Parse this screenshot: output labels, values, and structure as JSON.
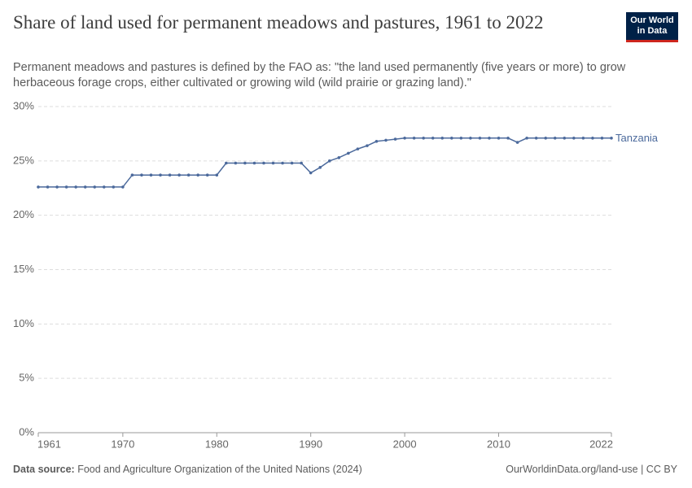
{
  "chart_data": {
    "type": "line",
    "title": "Share of land used for permanent meadows and pastures, 1961 to 2022",
    "subtitle": "Permanent meadows and pastures is defined by the FAO as: \"the land used permanently (five years or more) to grow herbaceous forage crops, either cultivated or growing wild (wild prairie or grazing land).\"",
    "logo": [
      "Our World",
      "in Data"
    ],
    "source_label": "Data source:",
    "source": "Food and Agriculture Organization of the United Nations (2024)",
    "footer_right": "OurWorldinData.org/land-use | CC BY",
    "x": [
      1961,
      1962,
      1963,
      1964,
      1965,
      1966,
      1967,
      1968,
      1969,
      1970,
      1971,
      1972,
      1973,
      1974,
      1975,
      1976,
      1977,
      1978,
      1979,
      1980,
      1981,
      1982,
      1983,
      1984,
      1985,
      1986,
      1987,
      1988,
      1989,
      1990,
      1991,
      1992,
      1993,
      1994,
      1995,
      1996,
      1997,
      1998,
      1999,
      2000,
      2001,
      2002,
      2003,
      2004,
      2005,
      2006,
      2007,
      2008,
      2009,
      2010,
      2011,
      2012,
      2013,
      2014,
      2015,
      2016,
      2017,
      2018,
      2019,
      2020,
      2021,
      2022
    ],
    "series": [
      {
        "name": "Tanzania",
        "color": "#4c6a9c",
        "values": [
          22.6,
          22.6,
          22.6,
          22.6,
          22.6,
          22.6,
          22.6,
          22.6,
          22.6,
          22.6,
          23.7,
          23.7,
          23.7,
          23.7,
          23.7,
          23.7,
          23.7,
          23.7,
          23.7,
          23.7,
          24.8,
          24.8,
          24.8,
          24.8,
          24.8,
          24.8,
          24.8,
          24.8,
          24.8,
          23.9,
          24.4,
          25.0,
          25.3,
          25.7,
          26.1,
          26.4,
          26.8,
          26.9,
          27.0,
          27.1,
          27.1,
          27.1,
          27.1,
          27.1,
          27.1,
          27.1,
          27.1,
          27.1,
          27.1,
          27.1,
          27.1,
          26.7,
          27.1,
          27.1,
          27.1,
          27.1,
          27.1,
          27.1,
          27.1,
          27.1,
          27.1,
          27.1
        ]
      }
    ],
    "xlim": [
      1961,
      2022
    ],
    "xticks": [
      1961,
      1970,
      1980,
      1990,
      2000,
      2010,
      2022
    ],
    "ylim": [
      0,
      30
    ],
    "yticks": [
      {
        "value": 0,
        "label": "0%"
      },
      {
        "value": 5,
        "label": "5%"
      },
      {
        "value": 10,
        "label": "10%"
      },
      {
        "value": 15,
        "label": "15%"
      },
      {
        "value": 20,
        "label": "20%"
      },
      {
        "value": 25,
        "label": "25%"
      },
      {
        "value": 30,
        "label": "30%"
      }
    ],
    "grid": true
  }
}
